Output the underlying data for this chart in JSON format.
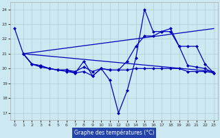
{
  "background_color": "#cce8f0",
  "grid_color": "#b0ccd4",
  "line_color": "#0000bb",
  "xlabel": "Graphe des températures (°C)",
  "xlabel_bg": "#2244aa",
  "xlim": [
    -0.5,
    23.5
  ],
  "ylim": [
    16.5,
    24.5
  ],
  "yticks": [
    17,
    18,
    19,
    20,
    21,
    22,
    23,
    24
  ],
  "xticks": [
    0,
    1,
    2,
    3,
    4,
    5,
    6,
    7,
    8,
    9,
    10,
    11,
    12,
    13,
    14,
    15,
    16,
    17,
    18,
    19,
    20,
    21,
    22,
    23
  ],
  "series": [
    {
      "x": [
        0,
        1,
        2,
        3,
        4,
        5,
        6,
        7,
        8,
        9,
        10,
        11,
        12,
        13,
        14,
        15,
        16,
        17,
        18,
        19,
        20,
        21,
        22,
        23
      ],
      "y": [
        22.7,
        21.0,
        20.3,
        20.2,
        20.0,
        19.9,
        19.8,
        19.7,
        20.5,
        19.5,
        20.0,
        19.2,
        17.0,
        18.5,
        20.7,
        24.0,
        22.5,
        22.5,
        22.7,
        21.5,
        20.2,
        20.1,
        20.0,
        19.7
      ],
      "marker": true
    },
    {
      "x": [
        1,
        23
      ],
      "y": [
        21.0,
        22.7
      ],
      "marker": false
    },
    {
      "x": [
        1,
        23
      ],
      "y": [
        21.0,
        19.8
      ],
      "marker": false
    },
    {
      "x": [
        1,
        2,
        3,
        4,
        5,
        6,
        7,
        8,
        9,
        10,
        11,
        12,
        13,
        14,
        15,
        16,
        17,
        18,
        19,
        20,
        21,
        22,
        23
      ],
      "y": [
        21.0,
        20.3,
        20.1,
        20.0,
        19.9,
        19.9,
        19.8,
        20.1,
        19.8,
        20.0,
        19.9,
        19.9,
        19.9,
        20.0,
        20.0,
        20.0,
        20.0,
        20.0,
        20.0,
        19.8,
        19.8,
        19.8,
        19.7
      ],
      "marker": true
    },
    {
      "x": [
        1,
        2,
        3,
        4,
        5,
        6,
        7,
        8,
        9,
        10,
        11,
        12,
        13,
        14,
        15,
        16,
        17,
        18,
        19,
        20,
        21,
        22,
        23
      ],
      "y": [
        21.0,
        20.3,
        20.2,
        20.0,
        19.9,
        19.9,
        19.7,
        19.8,
        19.5,
        20.0,
        19.9,
        19.9,
        20.5,
        21.5,
        22.2,
        22.2,
        22.5,
        22.5,
        21.5,
        21.5,
        21.5,
        20.3,
        19.7
      ],
      "marker": true
    }
  ]
}
